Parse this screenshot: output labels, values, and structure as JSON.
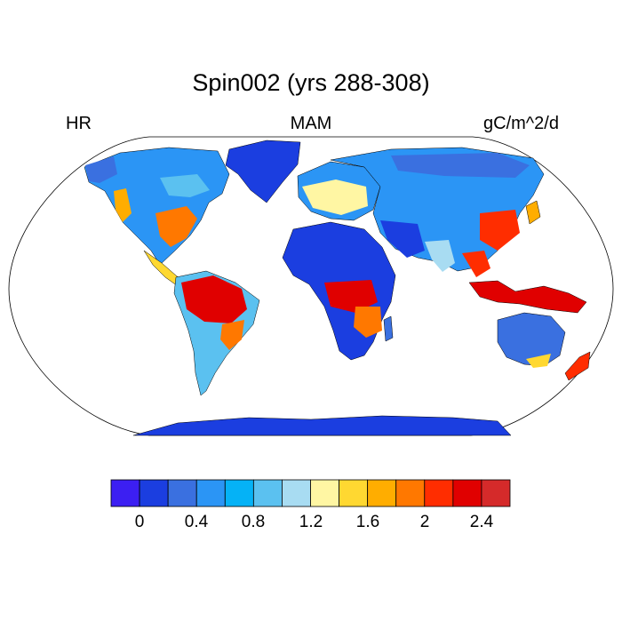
{
  "title": "Spin002 (yrs 288-308)",
  "left_label": "HR",
  "center_label": "MAM",
  "right_label": "gC/m^2/d",
  "colorbar": {
    "colors": [
      "#3c1ff2",
      "#1b3ee0",
      "#3a70e0",
      "#2b95f5",
      "#05b2f6",
      "#5bc1f0",
      "#a8dcf2",
      "#fff6a3",
      "#ffd831",
      "#ffad00",
      "#ff7800",
      "#ff2d00",
      "#e00000",
      "#d52a2a"
    ],
    "tick_labels": [
      "0",
      "0.4",
      "0.8",
      "1.2",
      "1.6",
      "2",
      "2.4"
    ]
  },
  "map": {
    "projection": "Robinson",
    "field": "heterotrophic respiration",
    "ocean_color": "#ffffff",
    "coast_color": "#000000"
  }
}
